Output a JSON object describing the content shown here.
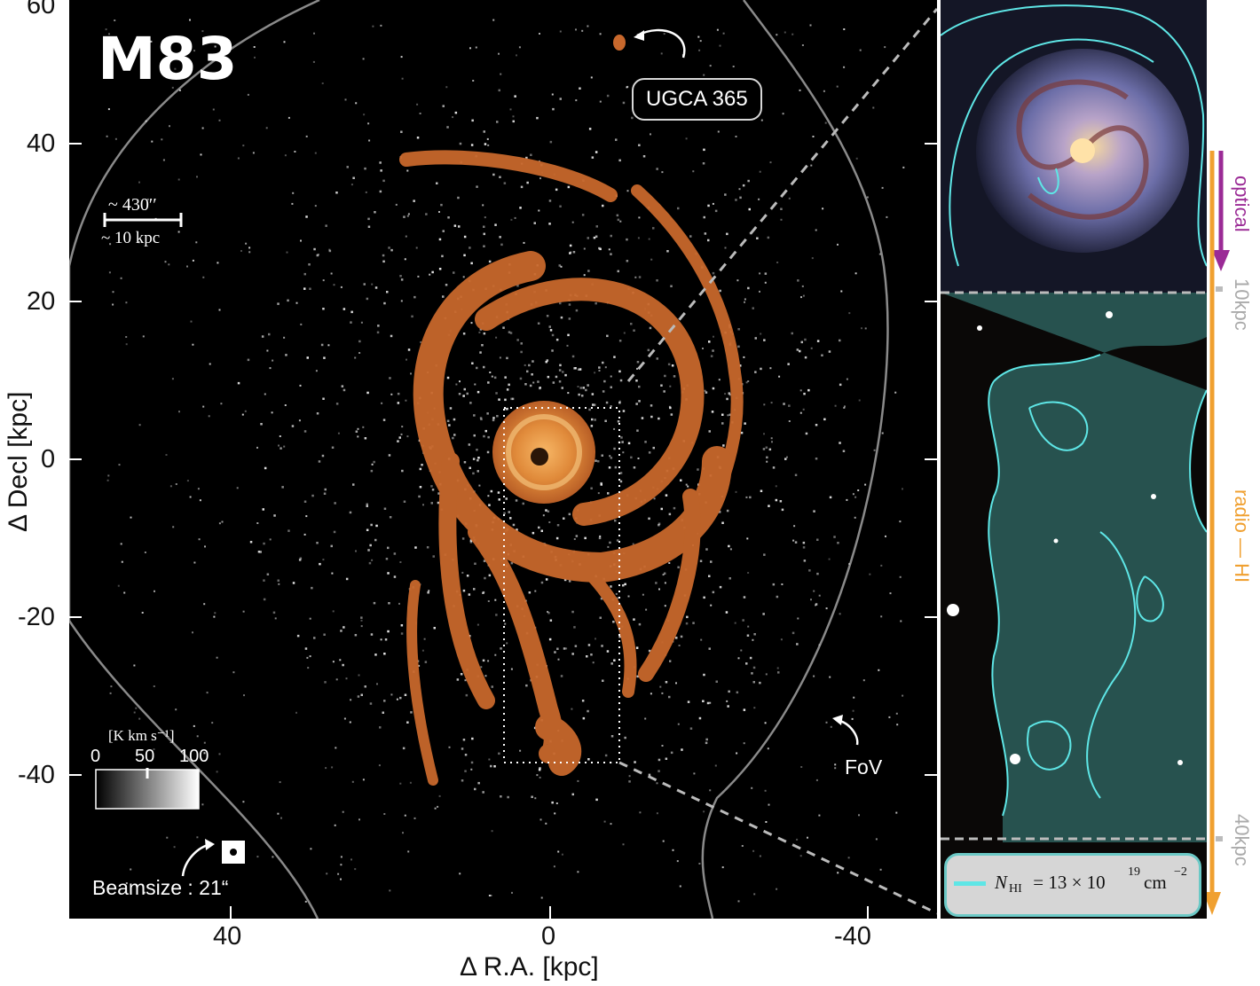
{
  "main_panel": {
    "title": "M83",
    "companion_label": "UGCA 365",
    "fov_label": "FoV",
    "beam_label": "Beamsize : 21“",
    "scalebar": {
      "top": "~ 430′′",
      "bottom": "~ 10 kpc"
    },
    "colorbar": {
      "unit": "[K km s⁻¹]",
      "ticks": [
        "0",
        "50",
        "100"
      ]
    },
    "xlabel": "Δ R.A. [kpc]",
    "ylabel": "Δ Decl [kpc]",
    "xticks": [
      "40",
      "0",
      "-40"
    ],
    "yticks": [
      "60",
      "40",
      "20",
      "0",
      "-20",
      "-40"
    ]
  },
  "side_panel": {
    "optical_label": "optical",
    "radio_label": "radio — HI",
    "marker_10": "10kpc",
    "marker_40": "40kpc",
    "legend_text": "N",
    "legend_sub": "HI",
    "legend_rest": " = 13 × 10",
    "legend_exp": "19",
    "legend_unit": "cm",
    "legend_unit_exp": "−2"
  },
  "colors": {
    "hi_emission": "#c8682c",
    "contour": "#5ee6e6",
    "optical_arrow": "#9b2b96",
    "radio_arrow": "#f0a030",
    "fov_line": "#8a8a8a"
  }
}
